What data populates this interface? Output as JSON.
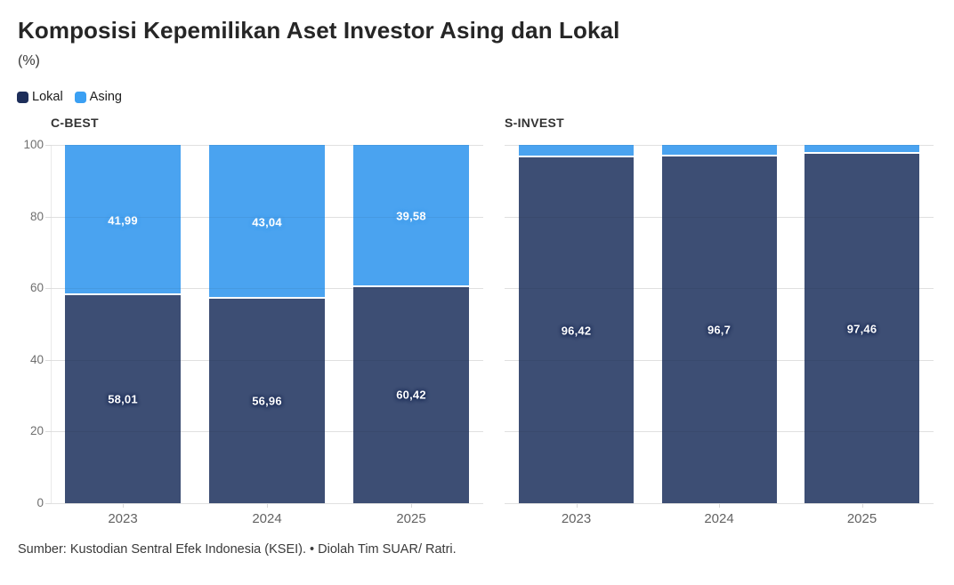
{
  "header": {
    "title": "Komposisi Kepemilikan Aset Investor Asing dan Lokal",
    "subtitle": "(%)"
  },
  "legend": {
    "position": "top-left",
    "items": [
      {
        "label": "Lokal",
        "color": "#1d2e5a"
      },
      {
        "label": "Asing",
        "color": "#3ba0f3"
      }
    ]
  },
  "colors": {
    "lokal_bar": "#3d4e74",
    "asing_bar": "#4aa3f0",
    "grid": "#ededed",
    "axis": "#dcdcdc",
    "y_tick_label": "#6f6f6f",
    "x_tick_label": "#636363"
  },
  "chart_data": [
    {
      "type": "bar",
      "stacked": true,
      "title": "C-BEST",
      "categories": [
        "2023",
        "2024",
        "2025"
      ],
      "series": [
        {
          "name": "Lokal",
          "values": [
            58.01,
            56.96,
            60.42
          ],
          "labels": [
            "58,01",
            "56,96",
            "60,42"
          ],
          "color": "#3d4e74"
        },
        {
          "name": "Asing",
          "values": [
            41.99,
            43.04,
            39.58
          ],
          "labels": [
            "41,99",
            "43,04",
            "39,58"
          ],
          "color": "#4aa3f0"
        }
      ],
      "ylim": [
        0,
        100
      ],
      "yticks": [
        0,
        20,
        40,
        60,
        80,
        100
      ],
      "grid": true,
      "y_axis": true
    },
    {
      "type": "bar",
      "stacked": true,
      "title": "S-INVEST",
      "categories": [
        "2023",
        "2024",
        "2025"
      ],
      "series": [
        {
          "name": "Lokal",
          "values": [
            96.42,
            96.7,
            97.46
          ],
          "labels": [
            "96,42",
            "96,7",
            "97,46"
          ],
          "color": "#3d4e74"
        },
        {
          "name": "Asing",
          "values": [
            3.58,
            3.3,
            2.54
          ],
          "labels": [
            "",
            "",
            ""
          ],
          "color": "#4aa3f0"
        }
      ],
      "ylim": [
        0,
        100
      ],
      "yticks": [
        0,
        20,
        40,
        60,
        80,
        100
      ],
      "grid": true,
      "y_axis": false
    }
  ],
  "footer": {
    "source": "Sumber: Kustodian Sentral Efek Indonesia (KSEI). • Diolah Tim SUAR/ Ratri."
  }
}
